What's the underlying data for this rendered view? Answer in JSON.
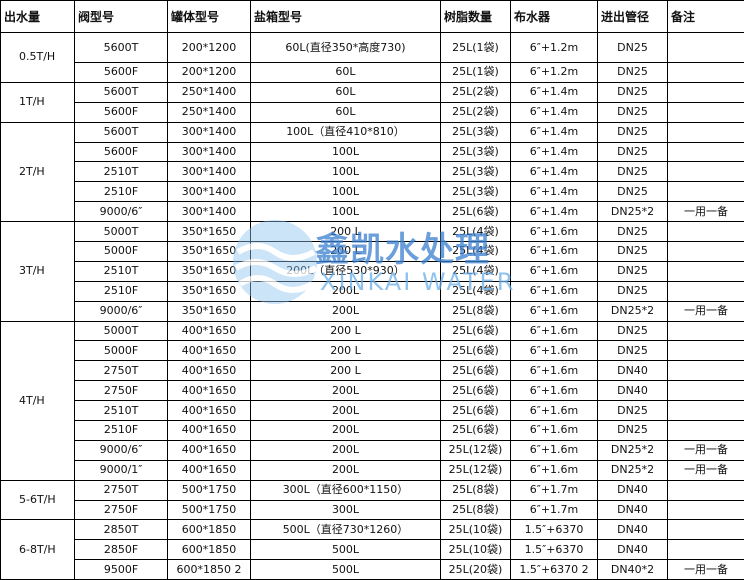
{
  "header": {
    "columns": [
      "出水量",
      "阀型号",
      "罐体型号",
      "盐箱型号",
      "树脂数量",
      "布水器",
      "进出管径",
      "备注"
    ]
  },
  "groups": [
    {
      "flow": "0.5T/H",
      "rows": [
        [
          "5600T",
          "200*1200",
          "60L(直径350*高度730)",
          "25L(1袋)",
          "6″+1.2m",
          "DN25"
        ],
        [
          "5600F",
          "200*1200",
          "60L",
          "25L(1袋)",
          "6″+1.2m",
          "DN25"
        ]
      ]
    },
    {
      "flow": "1T/H",
      "rows": [
        [
          "5600T",
          "250*1400",
          "60L",
          "25L(2袋)",
          "6″+1.4m",
          "DN25"
        ],
        [
          "5600F",
          "250*1400",
          "60L",
          "25L(2袋)",
          "6″+1.4m",
          "DN25"
        ]
      ]
    },
    {
      "flow": "2T/H",
      "rows": [
        [
          "5600T",
          "300*1400",
          "100L（直径410*810）",
          "25L(3袋)",
          "6″+1.4m",
          "DN25"
        ],
        [
          "5600F",
          "300*1400",
          "100L",
          "25L(3袋)",
          "6″+1.4m",
          "DN25"
        ],
        [
          "2510T",
          "300*1400",
          "100L",
          "25L(3袋)",
          "6″+1.4m",
          "DN25"
        ],
        [
          "2510F",
          "300*1400",
          "100L",
          "25L(3袋)",
          "6″+1.4m",
          "DN25"
        ],
        [
          "9000/6″",
          "300*1400",
          "100L",
          "25L(6袋)",
          "6″+1.4m",
          "DN25*2",
          "一用一备"
        ]
      ]
    },
    {
      "flow": "3T/H",
      "rows": [
        [
          "5000T",
          "350*1650",
          "200 L",
          "25L(4袋)",
          "6″+1.6m",
          "DN25"
        ],
        [
          "5000F",
          "350*1650",
          "200 L",
          "25L(4袋)",
          "6″+1.6m",
          "DN25"
        ],
        [
          "2510T",
          "350*1650",
          "200L（直径530*930）",
          "25L(4袋)",
          "6″+1.6m",
          "DN25"
        ],
        [
          "2510F",
          "350*1650",
          "200L",
          "25L(4袋)",
          "6″+1.6m",
          "DN25"
        ],
        [
          "9000/6″",
          "350*1650",
          "200L",
          "25L(8袋)",
          "6″+1.6m",
          "DN25*2",
          "一用一备"
        ]
      ]
    },
    {
      "flow": "4T/H",
      "rows": [
        [
          "5000T",
          "400*1650",
          "200 L",
          "25L(6袋)",
          "6″+1.6m",
          "DN25"
        ],
        [
          "5000F",
          "400*1650",
          "200 L",
          "25L(6袋)",
          "6″+1.6m",
          "DN25"
        ],
        [
          "2750T",
          "400*1650",
          "200 L",
          "25L(6袋)",
          "6″+1.6m",
          "DN40"
        ],
        [
          "2750F",
          "400*1650",
          "200L",
          "25L(6袋)",
          "6″+1.6m",
          "DN40"
        ],
        [
          "2510T",
          "400*1650",
          "200L",
          "25L(6袋)",
          "6″+1.6m",
          "DN25"
        ],
        [
          "2510F",
          "400*1650",
          "200L",
          "25L(6袋)",
          "6″+1.6m",
          "DN25"
        ],
        [
          "9000/6″",
          "400*1650",
          "200L",
          "25L(12袋)",
          "6″+1.6m",
          "DN25*2",
          "一用一备"
        ],
        [
          "9000/1″",
          "400*1650",
          "200L",
          "25L(12袋)",
          "6″+1.6m",
          "DN25*2",
          "一用一备"
        ]
      ]
    },
    {
      "flow": "5-6T/H",
      "rows": [
        [
          "2750T",
          "500*1750",
          "300L（直径600*1150）",
          "25L(8袋)",
          "6″+1.7m",
          "DN40"
        ],
        [
          "2750F",
          "500*1750",
          "300L",
          "25L(8袋)",
          "6″+1.7m",
          "DN40"
        ]
      ]
    },
    {
      "flow": "6-8T/H",
      "rows": [
        [
          "2850T",
          "600*1850",
          "500L（直径730*1260）",
          "25L(10袋)",
          "1.5″+6370",
          "DN40"
        ],
        [
          "2850F",
          "600*1850",
          "500L",
          "25L(10袋)",
          "1.5″+6370",
          "DN40"
        ],
        [
          "9500F",
          "600*1850 2",
          "500L",
          "25L(20袋)",
          "1.5″+6370 2",
          "DN40*2",
          "一用一备"
        ]
      ]
    }
  ],
  "watermark": {
    "name": "鑫凯水处理",
    "english": "XINKAI WATER"
  }
}
